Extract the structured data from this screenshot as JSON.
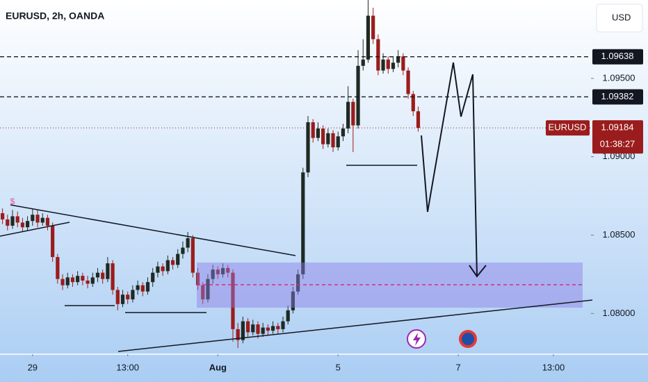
{
  "chart_data": {
    "type": "candlestick",
    "title": "EURUSD, 2h, OANDA",
    "currency_button": "USD",
    "event_marker": "$",
    "up_color": "#1e2a22",
    "down_color": "#9b1c1c",
    "xlim": [
      -0.5,
      117.5
    ],
    "xticks": [
      {
        "value": 6,
        "label": "29"
      },
      {
        "value": 25,
        "label": "13:00"
      },
      {
        "value": 43,
        "label": "Aug"
      },
      {
        "value": 67,
        "label": "5"
      },
      {
        "value": 91,
        "label": "7"
      },
      {
        "value": 110,
        "label": "13:00"
      }
    ],
    "ylim": [
      1.0774,
      1.1
    ],
    "yticks": [
      {
        "value": 1.095,
        "label": "1.09500"
      },
      {
        "value": 1.09,
        "label": "1.09000"
      },
      {
        "value": 1.085,
        "label": "1.08500"
      },
      {
        "value": 1.08,
        "label": "1.08000"
      }
    ],
    "levels": [
      1.09638,
      1.09382
    ],
    "current": {
      "symbol": "EURUSD",
      "price": 1.09184,
      "countdown": "01:38:27"
    },
    "ohlc": {
      "open": [
        1.0864,
        1.086,
        1.0856,
        1.0862,
        1.0858,
        1.0855,
        1.0859,
        1.0863,
        1.0858,
        1.0861,
        1.0856,
        1.0836,
        1.0822,
        1.0818,
        1.0823,
        1.082,
        1.0824,
        1.0821,
        1.0819,
        1.0823,
        1.0826,
        1.0822,
        1.0832,
        1.0815,
        1.0806,
        1.0812,
        1.0809,
        1.0815,
        1.0818,
        1.0814,
        1.082,
        1.0826,
        1.083,
        1.0827,
        1.0834,
        1.0831,
        1.0838,
        1.0842,
        1.0848,
        1.0826,
        1.0818,
        1.0809,
        1.0822,
        1.0828,
        1.0825,
        1.0829,
        1.0826,
        1.079,
        1.0783,
        1.0795,
        1.0788,
        1.0793,
        1.0787,
        1.0791,
        1.0789,
        1.0792,
        1.079,
        1.0795,
        1.0802,
        1.0814,
        1.0825,
        1.089,
        1.0922,
        1.0912,
        1.0918,
        1.0908,
        1.0915,
        1.0906,
        1.0913,
        1.0918,
        1.0935,
        1.092,
        1.0958,
        1.0962,
        1.099,
        1.0975,
        1.0955,
        1.0962,
        1.0956,
        1.096,
        1.0964,
        1.0955,
        1.094,
        1.0929
      ],
      "high": [
        1.0867,
        1.0863,
        1.0866,
        1.0865,
        1.0861,
        1.0862,
        1.0867,
        1.0866,
        1.0864,
        1.0863,
        1.0858,
        1.0838,
        1.0825,
        1.0826,
        1.0825,
        1.0827,
        1.0826,
        1.0824,
        1.0826,
        1.0829,
        1.0828,
        1.0836,
        1.0834,
        1.0817,
        1.0815,
        1.0814,
        1.0818,
        1.0821,
        1.082,
        1.0823,
        1.0829,
        1.0833,
        1.0832,
        1.0837,
        1.0836,
        1.0841,
        1.0846,
        1.0852,
        1.085,
        1.0829,
        1.082,
        1.0825,
        1.0831,
        1.083,
        1.0832,
        1.0831,
        1.0828,
        1.0794,
        1.0798,
        1.0797,
        1.0796,
        1.0795,
        1.0794,
        1.0793,
        1.0795,
        1.0794,
        1.0798,
        1.0805,
        1.0817,
        1.0828,
        1.0893,
        1.0926,
        1.0924,
        1.0922,
        1.092,
        1.0918,
        1.0917,
        1.0916,
        1.0921,
        1.0945,
        1.0937,
        1.0968,
        1.0975,
        1.1,
        1.0995,
        1.0978,
        1.0966,
        1.0964,
        1.0964,
        1.0968,
        1.0966,
        1.0957,
        1.0942,
        1.0932
      ],
      "low": [
        1.0857,
        1.0853,
        1.0854,
        1.0855,
        1.0852,
        1.0853,
        1.0856,
        1.0855,
        1.0856,
        1.0853,
        1.0833,
        1.0819,
        1.0815,
        1.0816,
        1.0817,
        1.0818,
        1.0818,
        1.0816,
        1.0817,
        1.082,
        1.0819,
        1.082,
        1.0812,
        1.0802,
        1.0804,
        1.0806,
        1.0807,
        1.0812,
        1.0811,
        1.0812,
        1.0817,
        1.0823,
        1.0824,
        1.0825,
        1.0828,
        1.0829,
        1.0835,
        1.0839,
        1.0823,
        1.0815,
        1.0806,
        1.0807,
        1.0819,
        1.0822,
        1.0823,
        1.0823,
        1.0782,
        1.0778,
        1.0781,
        1.0785,
        1.0786,
        1.0784,
        1.0785,
        1.0786,
        1.0787,
        1.0787,
        1.0788,
        1.0793,
        1.08,
        1.0812,
        1.0822,
        1.0887,
        1.0909,
        1.091,
        1.0905,
        1.0906,
        1.0903,
        1.0904,
        1.091,
        1.0915,
        1.0903,
        1.0918,
        1.0955,
        1.096,
        1.0972,
        1.0952,
        1.0953,
        1.0953,
        1.0954,
        1.0957,
        1.0952,
        1.0937,
        1.0926,
        1.0916
      ],
      "close": [
        1.086,
        1.0856,
        1.0862,
        1.0858,
        1.0855,
        1.0859,
        1.0863,
        1.0858,
        1.0861,
        1.0856,
        1.0836,
        1.0822,
        1.0818,
        1.0823,
        1.082,
        1.0824,
        1.0821,
        1.0819,
        1.0823,
        1.0826,
        1.0822,
        1.0832,
        1.0815,
        1.0806,
        1.0812,
        1.0809,
        1.0815,
        1.0818,
        1.0814,
        1.082,
        1.0826,
        1.083,
        1.0827,
        1.0834,
        1.0831,
        1.0838,
        1.0842,
        1.0848,
        1.0826,
        1.0818,
        1.0809,
        1.0822,
        1.0828,
        1.0825,
        1.0829,
        1.0826,
        1.079,
        1.0783,
        1.0795,
        1.0788,
        1.0793,
        1.0787,
        1.0791,
        1.0789,
        1.0792,
        1.079,
        1.0795,
        1.0802,
        1.0814,
        1.0825,
        1.089,
        1.0922,
        1.0912,
        1.0918,
        1.0908,
        1.0915,
        1.0906,
        1.0913,
        1.0918,
        1.0935,
        1.092,
        1.0958,
        1.0962,
        1.099,
        1.0975,
        1.0955,
        1.0962,
        1.0956,
        1.096,
        1.0964,
        1.0955,
        1.094,
        1.0929,
        1.09184
      ]
    }
  }
}
